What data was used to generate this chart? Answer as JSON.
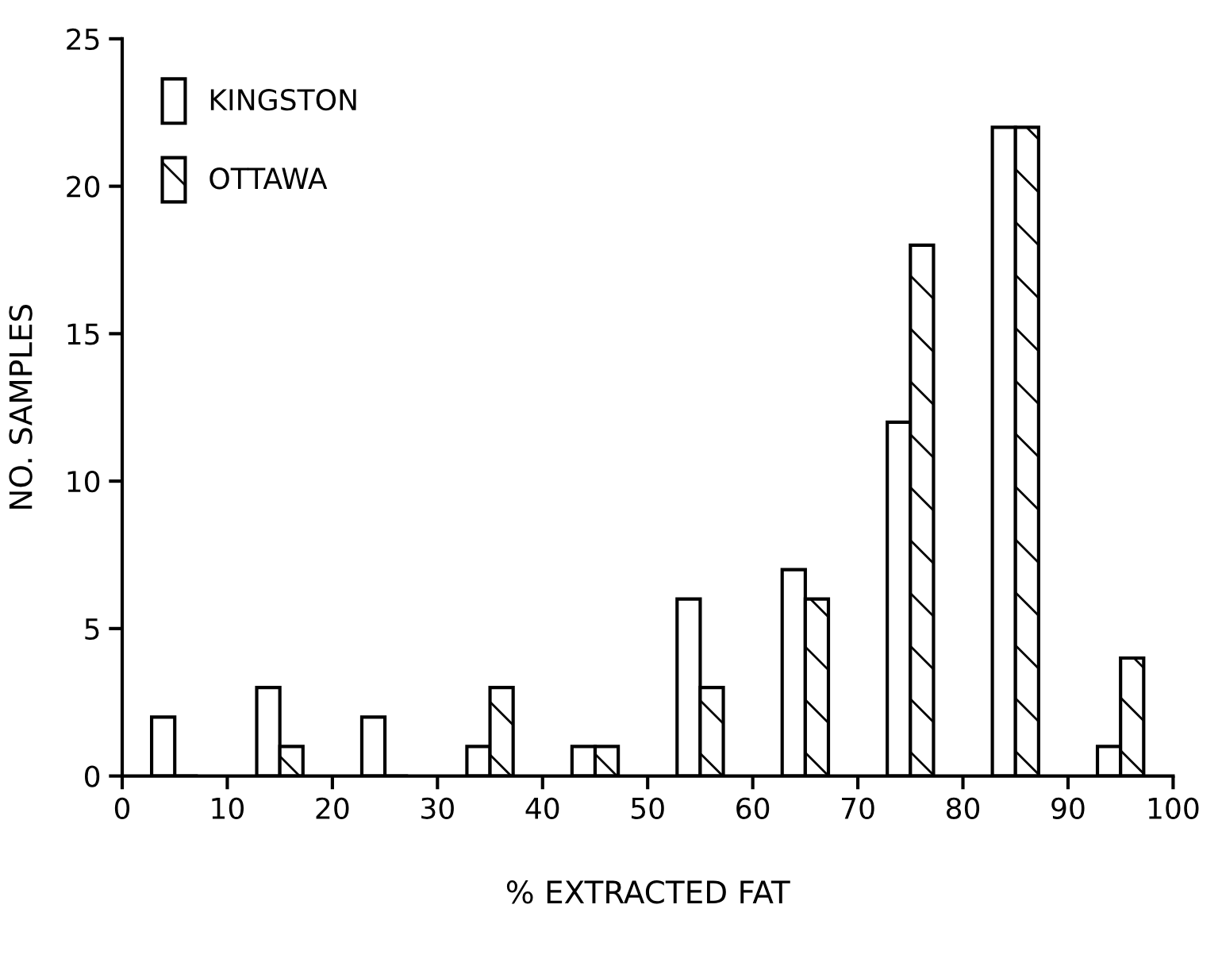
{
  "chart_data": {
    "type": "bar",
    "xlabel": "% EXTRACTED FAT",
    "ylabel": "NO. SAMPLES",
    "x": [
      5,
      15,
      25,
      35,
      45,
      55,
      65,
      75,
      85,
      95
    ],
    "series": [
      {
        "name": "KINGSTON",
        "color": "#ffffff",
        "values": [
          2,
          3,
          2,
          1,
          1,
          6,
          7,
          12,
          22,
          1
        ]
      },
      {
        "name": "OTTAWA",
        "color": "#000000",
        "values": [
          0,
          1,
          0,
          3,
          1,
          3,
          6,
          18,
          22,
          4
        ]
      }
    ],
    "xlim": [
      0,
      100
    ],
    "xticks": [
      0,
      10,
      20,
      30,
      40,
      50,
      60,
      70,
      80,
      90,
      100
    ],
    "ylim": [
      0,
      25
    ],
    "yticks": [
      0,
      5,
      10,
      15,
      20,
      25
    ],
    "grid": false,
    "legend": "top left"
  }
}
